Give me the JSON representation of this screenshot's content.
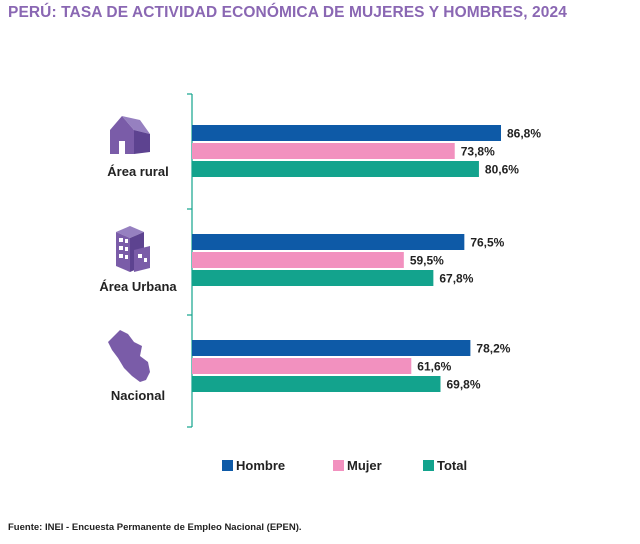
{
  "title": "PERÚ: TASA DE ACTIVIDAD ECONÓMICA DE MUJERES Y HOMBRES, 2024",
  "source": "Fuente: INEI - Encuesta Permanente de Empleo Nacional (EPEN).",
  "colors": {
    "hombre": "#0e5aa7",
    "mujer": "#f291bf",
    "total": "#13a38d",
    "axis": "#13a38d",
    "icon": "#7a5ca8",
    "title": "#8a67b3"
  },
  "chart_data": {
    "type": "bar",
    "orientation": "horizontal",
    "title": "PERÚ: TASA DE ACTIVIDAD ECONÓMICA DE MUJERES Y HOMBRES, 2024",
    "categories": [
      "Área rural",
      "Área Urbana",
      "Nacional"
    ],
    "category_icons": [
      "house-icon",
      "building-icon",
      "peru-map-icon"
    ],
    "series": [
      {
        "name": "Hombre",
        "values": [
          86.8,
          76.5,
          78.2
        ],
        "labels": [
          "86,8%",
          "76,5%",
          "78,2%"
        ]
      },
      {
        "name": "Mujer",
        "values": [
          73.8,
          59.5,
          61.6
        ],
        "labels": [
          "73,8%",
          "59,5%",
          "61,6%"
        ]
      },
      {
        "name": "Total",
        "values": [
          80.6,
          67.8,
          69.8
        ],
        "labels": [
          "80,6%",
          "67,8%",
          "69,8%"
        ]
      }
    ],
    "xlim": [
      0,
      100
    ],
    "grid": false,
    "legend_position": "bottom"
  }
}
